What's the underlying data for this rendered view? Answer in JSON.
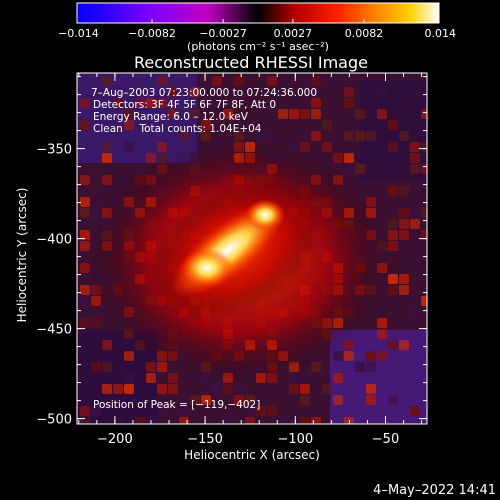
{
  "chart_data": {
    "type": "heatmap",
    "title": "Reconstructed RHESSI Image",
    "xlabel": "Heliocentric X (arcsec)",
    "ylabel": "Heliocentric Y (arcsec)",
    "xlim": [
      -221,
      -27
    ],
    "ylim": [
      -503,
      -308
    ],
    "xticks": [
      -200,
      -150,
      -100,
      -50
    ],
    "yticks": [
      -350,
      -400,
      -450,
      -500
    ],
    "xtick_labels": [
      "−200",
      "−150",
      "−100",
      "−50"
    ],
    "ytick_labels": [
      "−350",
      "−400",
      "−450",
      "−500"
    ],
    "peak": [
      -119,
      -402
    ],
    "colorbar": {
      "range": [
        -0.014,
        0.014
      ],
      "ticks": [
        -0.014,
        -0.0082,
        -0.0027,
        0.0027,
        0.0082,
        0.014
      ],
      "tick_labels": [
        "−0.014",
        "−0.0082",
        "−0.0027",
        "0.0027",
        "0.0082",
        "0.014"
      ],
      "unit_label": "(photons cm⁻² s⁻¹ asec⁻²)",
      "colormap": [
        "#0000ff",
        "#7a00ff",
        "#c000c0",
        "#000000",
        "#b00000",
        "#ff2000",
        "#ff8000",
        "#ffd000",
        "#ffffff"
      ]
    },
    "annotations": {
      "time_range": "7–Aug–2003 07:23:00.000 to 07:24:36.000",
      "detectors": "Detectors: 3F 4F 5F 6F 7F 8F, Att 0",
      "energy": "Energy Range: 6.0 – 12.0 keV",
      "clean": "Clean     Total counts: 1.04E+04",
      "peak_text": "Position of Peak = [−119,−402]"
    },
    "grid": false
  },
  "footer": {
    "date": "4–May–2022 14:41"
  },
  "colors": {
    "background": "#000000",
    "text": "#ffffff"
  }
}
